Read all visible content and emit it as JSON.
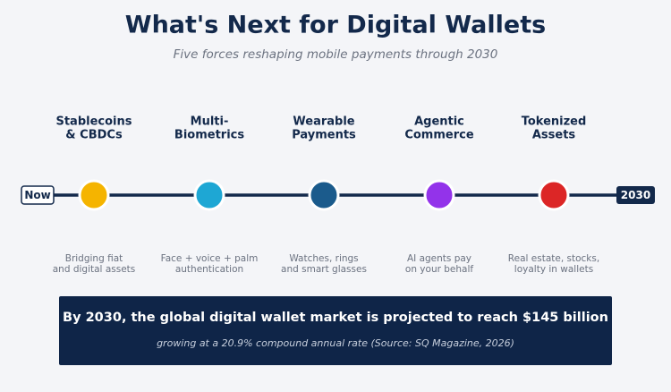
{
  "header": {
    "title": "What's Next for Digital Wallets",
    "subtitle": "Five forces reshaping mobile payments through 2030"
  },
  "timeline": {
    "start": "Now",
    "end": "2030",
    "nodes": [
      {
        "label": [
          "Stablecoins",
          "& CBDCs"
        ],
        "description": [
          "Bridging fiat",
          "and digital assets"
        ]
      },
      {
        "label": [
          "Multi-",
          "Biometrics"
        ],
        "description": [
          "Face + voice + palm",
          "authentication"
        ]
      },
      {
        "label": [
          "Wearable",
          "Payments"
        ],
        "description": [
          "Watches, rings",
          "and smart glasses"
        ]
      },
      {
        "label": [
          "Agentic",
          "Commerce"
        ],
        "description": [
          "AI agents pay",
          "on your behalf"
        ]
      },
      {
        "label": [
          "Tokenized",
          "Assets"
        ],
        "description": [
          "Real estate, stocks,",
          "loyalty in wallets"
        ]
      }
    ]
  },
  "banner": {
    "headline": "By 2030, the global digital wallet market is projected to reach $145 billion",
    "note": "growing at a 20.9% compound annual rate (Source: SQ Magazine, 2026)"
  }
}
